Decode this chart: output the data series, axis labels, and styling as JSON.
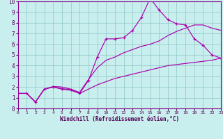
{
  "xlabel": "Windchill (Refroidissement éolien,°C)",
  "xlim": [
    0,
    23
  ],
  "ylim": [
    0,
    10
  ],
  "xticks": [
    0,
    1,
    2,
    3,
    4,
    5,
    6,
    7,
    8,
    9,
    10,
    11,
    12,
    13,
    14,
    15,
    16,
    17,
    18,
    19,
    20,
    21,
    22,
    23
  ],
  "yticks": [
    0,
    1,
    2,
    3,
    4,
    5,
    6,
    7,
    8,
    9,
    10
  ],
  "bg_color": "#c8eeee",
  "line_color": "#aa00aa",
  "grid_color": "#99cccc",
  "marker_color": "#aa00aa",
  "s1_x": [
    0,
    1,
    2,
    3,
    4,
    5,
    6,
    7,
    8,
    9,
    10,
    11,
    12,
    13,
    14,
    15,
    16,
    17,
    18,
    19,
    20,
    21,
    22,
    23
  ],
  "s1_y": [
    1.4,
    1.4,
    0.6,
    1.8,
    2.0,
    1.85,
    1.75,
    1.4,
    2.6,
    4.8,
    6.5,
    6.5,
    6.6,
    7.3,
    8.5,
    10.3,
    9.2,
    8.3,
    7.9,
    7.8,
    6.5,
    5.9,
    5.0,
    4.7
  ],
  "s2_x": [
    0,
    1,
    2,
    3,
    4,
    5,
    6,
    7,
    8,
    9,
    10,
    11,
    12,
    13,
    14,
    15,
    16,
    17,
    18,
    19,
    20,
    21,
    22,
    23
  ],
  "s2_y": [
    1.4,
    1.4,
    0.6,
    1.8,
    2.05,
    2.0,
    1.8,
    1.5,
    2.7,
    3.8,
    4.5,
    4.8,
    5.2,
    5.5,
    5.8,
    6.0,
    6.3,
    6.8,
    7.2,
    7.5,
    7.8,
    7.8,
    7.5,
    7.3
  ],
  "s3_x": [
    0,
    1,
    2,
    3,
    4,
    5,
    6,
    7,
    8,
    9,
    10,
    11,
    12,
    13,
    14,
    15,
    16,
    17,
    18,
    19,
    20,
    21,
    22,
    23
  ],
  "s3_y": [
    1.4,
    1.4,
    0.6,
    1.8,
    2.0,
    1.8,
    1.7,
    1.4,
    1.8,
    2.2,
    2.5,
    2.8,
    3.0,
    3.2,
    3.4,
    3.6,
    3.8,
    4.0,
    4.1,
    4.2,
    4.3,
    4.4,
    4.5,
    4.7
  ]
}
